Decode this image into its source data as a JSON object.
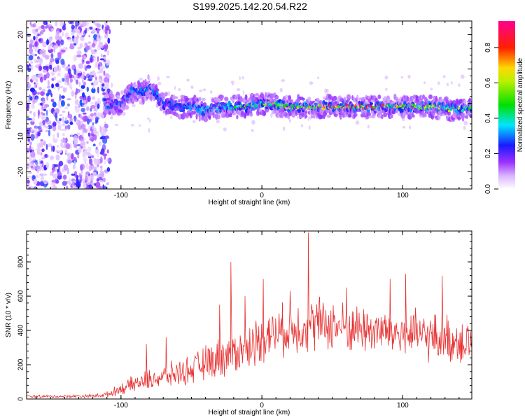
{
  "title": "S199.2025.142.20.54.R22",
  "chart_data": [
    {
      "type": "heatmap",
      "xlabel": "Height of straight line (km)",
      "ylabel": "Frequency (Hz)",
      "xlim": [
        -167,
        149
      ],
      "ylim": [
        -25,
        24
      ],
      "x_ticks": [
        "-100",
        "0",
        "100"
      ],
      "y_ticks": [
        "-20",
        "-10",
        "0",
        "10",
        "20"
      ],
      "colorbar": {
        "label": "Normalized spectral amplitude",
        "range": [
          0,
          0.95
        ],
        "ticks": [
          "0.0",
          "0.2",
          "0.4",
          "0.6",
          "0.8"
        ],
        "colors": [
          "#ffffff",
          "#9b30ff",
          "#1a1aff",
          "#00e5ff",
          "#00e000",
          "#ffd800",
          "#ff0000",
          "#ff0090"
        ]
      },
      "signal_track": {
        "description_points_x_km": [
          -110,
          -100,
          -95,
          -90,
          -85,
          -80,
          -75,
          -70,
          -60,
          -50,
          -40,
          -30,
          -20,
          -10,
          0,
          20,
          40,
          60,
          80,
          100,
          120,
          140,
          149
        ],
        "center_freq_hz": [
          0,
          0,
          2,
          4,
          3,
          5,
          2,
          0,
          -1,
          -1,
          -2,
          -1,
          -1,
          -1,
          0,
          -1,
          -1,
          -1,
          -1,
          -1,
          -1,
          -2,
          -1
        ],
        "peak_amplitude": [
          0.15,
          0.3,
          0.35,
          0.4,
          0.35,
          0.45,
          0.35,
          0.3,
          0.3,
          0.35,
          0.4,
          0.45,
          0.5,
          0.6,
          0.65,
          0.7,
          0.75,
          0.85,
          0.9,
          0.75,
          0.7,
          0.6,
          0.5
        ]
      },
      "noise_region_x_km": [
        -167,
        -108
      ]
    },
    {
      "type": "line",
      "color": "#e83030",
      "xlabel": "Height of straight line (km)",
      "ylabel": "SNR (10 * v/v)",
      "xlim": [
        -167,
        149
      ],
      "ylim": [
        0,
        980
      ],
      "x_ticks": [
        "-100",
        "0",
        "100"
      ],
      "y_ticks": [
        "0",
        "200",
        "400",
        "600",
        "800"
      ],
      "envelope": {
        "x": [
          -167,
          -140,
          -120,
          -110,
          -100,
          -90,
          -80,
          -70,
          -60,
          -50,
          -40,
          -30,
          -20,
          -10,
          0,
          10,
          20,
          30,
          40,
          50,
          60,
          70,
          80,
          90,
          100,
          110,
          120,
          130,
          140,
          149
        ],
        "mean": [
          15,
          15,
          18,
          25,
          60,
          90,
          110,
          130,
          150,
          170,
          210,
          240,
          270,
          300,
          360,
          390,
          410,
          430,
          440,
          430,
          420,
          410,
          400,
          390,
          380,
          370,
          360,
          350,
          340,
          340
        ],
        "spread": [
          10,
          10,
          12,
          20,
          40,
          60,
          70,
          80,
          90,
          100,
          120,
          140,
          150,
          160,
          170,
          170,
          180,
          190,
          190,
          180,
          170,
          170,
          170,
          170,
          170,
          170,
          170,
          170,
          170,
          170
        ]
      },
      "spikes": [
        {
          "x": 33,
          "y": 970
        },
        {
          "x": -22,
          "y": 800
        },
        {
          "x": 1,
          "y": 700
        },
        {
          "x": 102,
          "y": 730
        },
        {
          "x": 128,
          "y": 720
        },
        {
          "x": 91,
          "y": 700
        },
        {
          "x": -12,
          "y": 600
        },
        {
          "x": -30,
          "y": 550
        },
        {
          "x": -68,
          "y": 360
        },
        {
          "x": -82,
          "y": 320
        },
        {
          "x": 60,
          "y": 650
        },
        {
          "x": 20,
          "y": 630
        }
      ]
    }
  ]
}
